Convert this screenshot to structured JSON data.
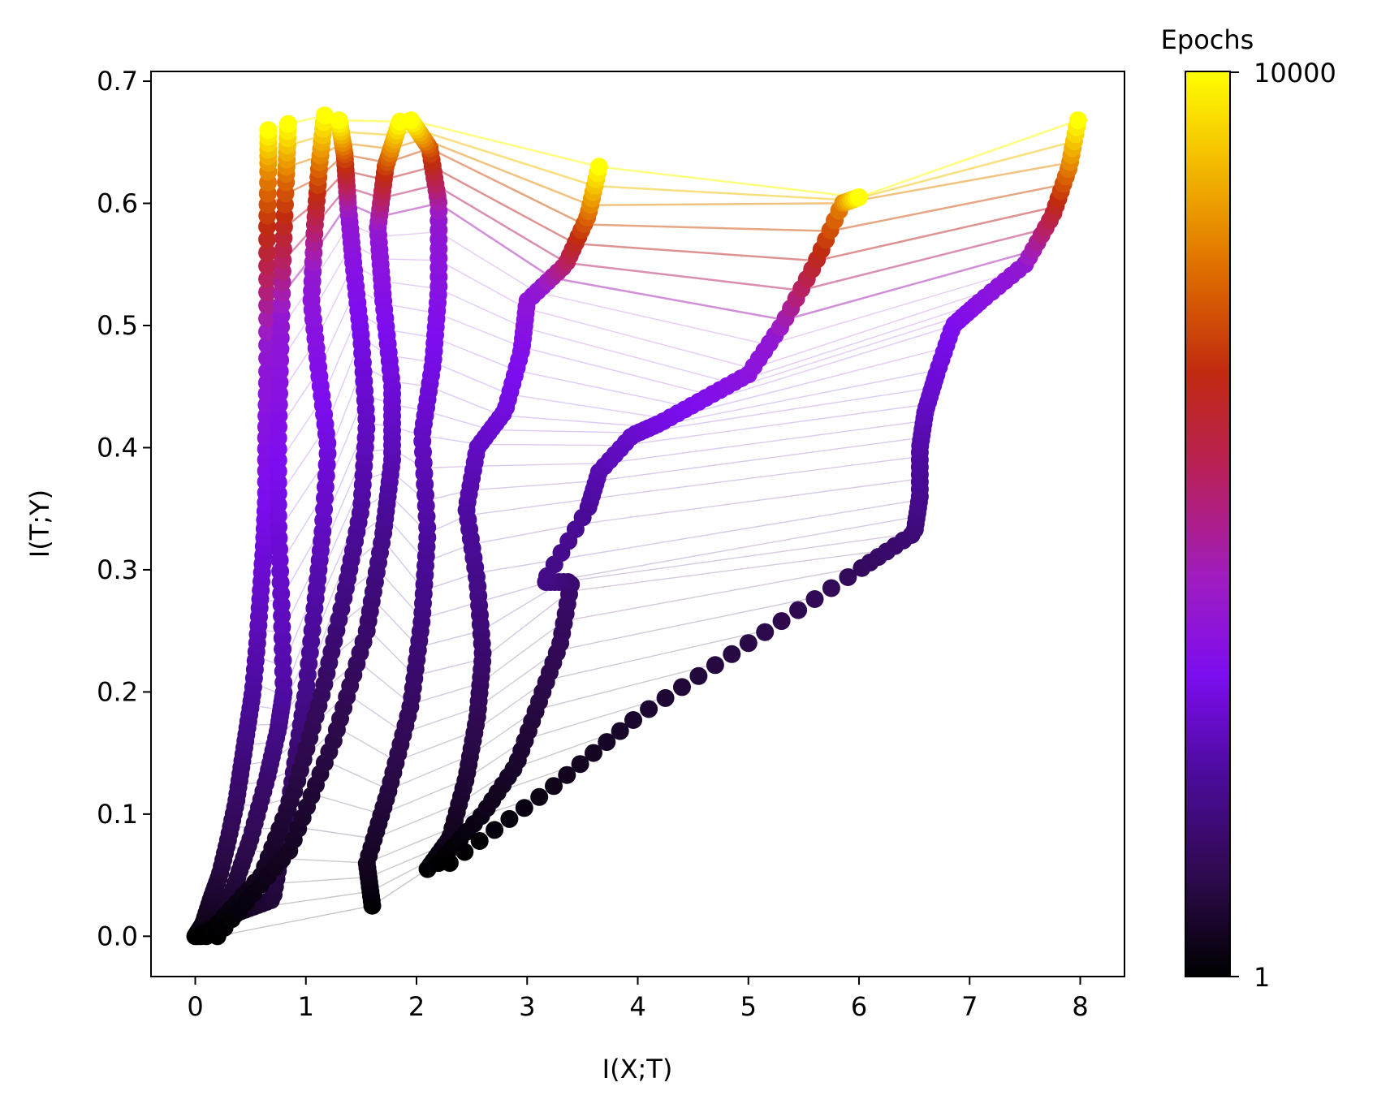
{
  "chart_data": {
    "type": "scatter",
    "title": "",
    "xlabel": "I(X;T)",
    "ylabel": "I(T;Y)",
    "xlim": [
      -0.4,
      8.4
    ],
    "ylim": [
      -0.033,
      0.708
    ],
    "x_ticks": [
      0,
      1,
      2,
      3,
      4,
      5,
      6,
      7,
      8
    ],
    "y_ticks": [
      0.0,
      0.1,
      0.2,
      0.3,
      0.4,
      0.5,
      0.6,
      0.7
    ],
    "x_tick_labels": [
      "0",
      "1",
      "2",
      "3",
      "4",
      "5",
      "6",
      "7",
      "8"
    ],
    "y_tick_labels": [
      "0.0",
      "0.1",
      "0.2",
      "0.3",
      "0.4",
      "0.5",
      "0.6",
      "0.7"
    ],
    "grid": false,
    "colorbar": {
      "label": "Epochs",
      "scale": "log",
      "min": 1,
      "max": 10000,
      "min_label": "1",
      "max_label": "10000",
      "colormap": "gnuplot",
      "colors": [
        "#000000",
        "#2e0a4e",
        "#4b0b9b",
        "#7c0df0",
        "#a11dbd",
        "#b8205c",
        "#c02a10",
        "#de6c00",
        "#f2b500",
        "#ffff00"
      ]
    },
    "series": [
      {
        "points": [
          [
            0,
            0
          ],
          [
            0.07,
            0.01
          ],
          [
            0.14,
            0.03
          ],
          [
            0.22,
            0.05
          ],
          [
            0.3,
            0.08
          ],
          [
            0.37,
            0.11
          ],
          [
            0.42,
            0.14
          ],
          [
            0.47,
            0.17
          ],
          [
            0.52,
            0.2
          ],
          [
            0.56,
            0.24
          ],
          [
            0.59,
            0.28
          ],
          [
            0.62,
            0.32
          ],
          [
            0.64,
            0.36
          ],
          [
            0.64,
            0.41
          ],
          [
            0.65,
            0.46
          ],
          [
            0.65,
            0.52
          ],
          [
            0.65,
            0.58
          ],
          [
            0.66,
            0.63
          ],
          [
            0.66,
            0.66
          ]
        ]
      },
      {
        "points": [
          [
            0.02,
            0
          ],
          [
            0.2,
            0.01
          ],
          [
            0.35,
            0.04
          ],
          [
            0.5,
            0.08
          ],
          [
            0.65,
            0.13
          ],
          [
            0.75,
            0.17
          ],
          [
            0.8,
            0.2
          ],
          [
            0.78,
            0.27
          ],
          [
            0.75,
            0.34
          ],
          [
            0.75,
            0.41
          ],
          [
            0.77,
            0.48
          ],
          [
            0.79,
            0.55
          ],
          [
            0.82,
            0.62
          ],
          [
            0.84,
            0.665
          ]
        ]
      },
      {
        "points": [
          [
            0.05,
            0
          ],
          [
            0.4,
            0.02
          ],
          [
            0.7,
            0.03
          ],
          [
            0.8,
            0.08
          ],
          [
            0.9,
            0.14
          ],
          [
            1.0,
            0.2
          ],
          [
            1.08,
            0.27
          ],
          [
            1.15,
            0.33
          ],
          [
            1.2,
            0.4
          ],
          [
            1.12,
            0.46
          ],
          [
            1.05,
            0.52
          ],
          [
            1.08,
            0.58
          ],
          [
            1.12,
            0.63
          ],
          [
            1.17,
            0.672
          ]
        ]
      },
      {
        "points": [
          [
            0.1,
            0
          ],
          [
            0.6,
            0.05
          ],
          [
            0.9,
            0.12
          ],
          [
            1.15,
            0.2
          ],
          [
            1.35,
            0.28
          ],
          [
            1.5,
            0.35
          ],
          [
            1.55,
            0.42
          ],
          [
            1.5,
            0.49
          ],
          [
            1.43,
            0.55
          ],
          [
            1.38,
            0.6
          ],
          [
            1.35,
            0.64
          ],
          [
            1.3,
            0.668
          ]
        ]
      },
      {
        "points": [
          [
            0.2,
            0
          ],
          [
            0.85,
            0.07
          ],
          [
            1.25,
            0.16
          ],
          [
            1.55,
            0.25
          ],
          [
            1.7,
            0.33
          ],
          [
            1.78,
            0.39
          ],
          [
            1.78,
            0.45
          ],
          [
            1.7,
            0.52
          ],
          [
            1.65,
            0.58
          ],
          [
            1.72,
            0.63
          ],
          [
            1.85,
            0.667
          ]
        ]
      },
      {
        "points": [
          [
            1.6,
            0.025
          ],
          [
            1.55,
            0.06
          ],
          [
            1.75,
            0.12
          ],
          [
            1.95,
            0.19
          ],
          [
            2.05,
            0.26
          ],
          [
            2.1,
            0.33
          ],
          [
            2.05,
            0.41
          ],
          [
            2.15,
            0.47
          ],
          [
            2.2,
            0.53
          ],
          [
            2.2,
            0.6
          ],
          [
            2.12,
            0.645
          ],
          [
            1.95,
            0.668
          ]
        ]
      },
      {
        "points": [
          [
            2.1,
            0.055
          ],
          [
            2.3,
            0.08
          ],
          [
            2.45,
            0.13
          ],
          [
            2.55,
            0.18
          ],
          [
            2.6,
            0.23
          ],
          [
            2.55,
            0.29
          ],
          [
            2.45,
            0.35
          ],
          [
            2.55,
            0.4
          ],
          [
            2.8,
            0.43
          ],
          [
            2.95,
            0.48
          ],
          [
            3.0,
            0.52
          ],
          [
            3.35,
            0.55
          ],
          [
            3.55,
            0.59
          ],
          [
            3.65,
            0.63
          ]
        ]
      },
      {
        "points": [
          [
            2.2,
            0.06
          ],
          [
            2.6,
            0.1
          ],
          [
            2.9,
            0.14
          ],
          [
            3.1,
            0.19
          ],
          [
            3.3,
            0.24
          ],
          [
            3.4,
            0.29
          ],
          [
            3.15,
            0.29
          ],
          [
            3.55,
            0.35
          ],
          [
            3.65,
            0.38
          ],
          [
            3.95,
            0.41
          ],
          [
            4.2,
            0.42
          ],
          [
            4.6,
            0.44
          ],
          [
            5.0,
            0.46
          ],
          [
            5.3,
            0.5
          ],
          [
            5.6,
            0.55
          ],
          [
            5.85,
            0.6
          ],
          [
            6.0,
            0.605
          ]
        ]
      },
      {
        "points": [
          [
            2.3,
            0.06
          ],
          [
            3.2,
            0.12
          ],
          [
            4.0,
            0.18
          ],
          [
            5.0,
            0.24
          ],
          [
            6.0,
            0.3
          ],
          [
            6.5,
            0.33
          ],
          [
            6.55,
            0.36
          ],
          [
            6.55,
            0.4
          ],
          [
            6.6,
            0.43
          ],
          [
            6.7,
            0.46
          ],
          [
            6.85,
            0.5
          ],
          [
            7.1,
            0.52
          ],
          [
            7.5,
            0.55
          ],
          [
            7.75,
            0.59
          ],
          [
            7.9,
            0.63
          ],
          [
            7.98,
            0.668
          ]
        ]
      }
    ],
    "annotations": []
  }
}
